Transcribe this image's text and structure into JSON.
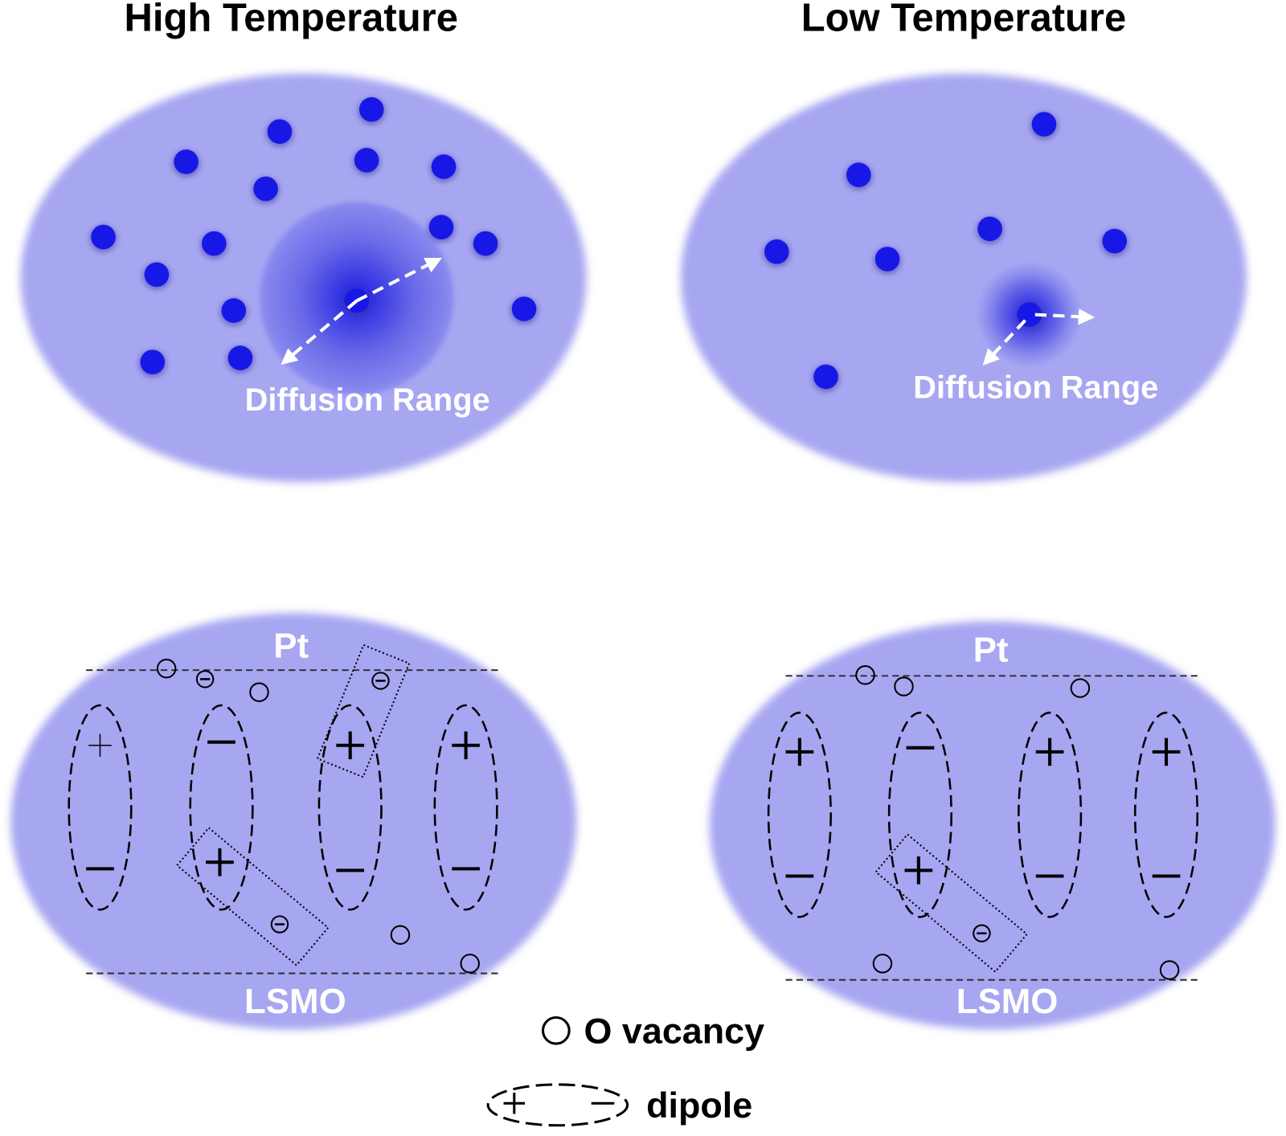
{
  "panels": [
    {
      "title": "High Temperature",
      "diffusion_label": "Diffusion Range",
      "top_label": "Pt",
      "bottom_label": "LSMO"
    },
    {
      "title": "Low Temperature",
      "diffusion_label": "Diffusion Range",
      "top_label": "Pt",
      "bottom_label": "LSMO"
    }
  ],
  "legend": {
    "vacancy": "O vacancy",
    "dipole": "dipole"
  }
}
